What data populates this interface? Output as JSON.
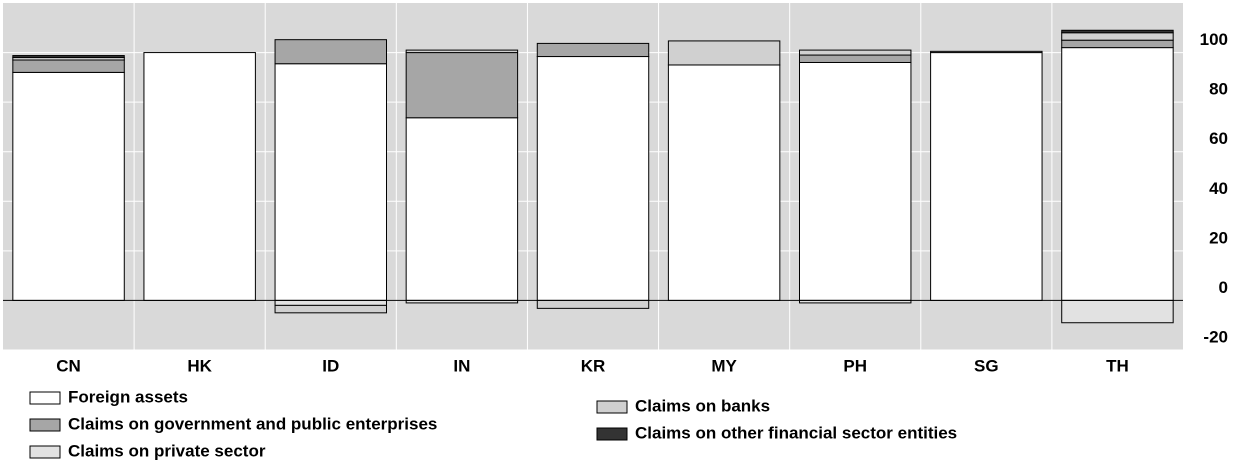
{
  "chart_data": {
    "type": "stacked_bar",
    "categories": [
      "CN",
      "HK",
      "ID",
      "IN",
      "KR",
      "MY",
      "PH",
      "SG",
      "TH"
    ],
    "series": [
      {
        "name": "Foreign assets",
        "color": "#ffffff",
        "values": [
          92,
          100,
          95.5,
          73.7,
          98.4,
          95,
          96,
          100,
          102
        ]
      },
      {
        "name": "Claims on government and public enterprises",
        "color": "#a6a6a6",
        "values": [
          5,
          0,
          9.7,
          26.3,
          5.3,
          0,
          3,
          0,
          3
        ]
      },
      {
        "name": "Claims on private sector",
        "color": "#e2e2e2",
        "values": [
          0,
          0,
          -2,
          -1,
          0,
          0,
          -1,
          0,
          -9
        ]
      },
      {
        "name": "Claims on banks",
        "color": "#d0d0d0",
        "values": [
          1,
          0,
          -3,
          1,
          -3.2,
          9.7,
          2,
          0.5,
          3
        ]
      },
      {
        "name": "Claims on other financial sector entities",
        "color": "#333333",
        "values": [
          0.8,
          0,
          0,
          0,
          0,
          0,
          0,
          0,
          1
        ]
      }
    ],
    "ylim": [
      -20,
      120
    ],
    "yticks": [
      -20,
      0,
      20,
      40,
      60,
      80,
      100
    ],
    "grid": true,
    "legend": "bottom"
  }
}
